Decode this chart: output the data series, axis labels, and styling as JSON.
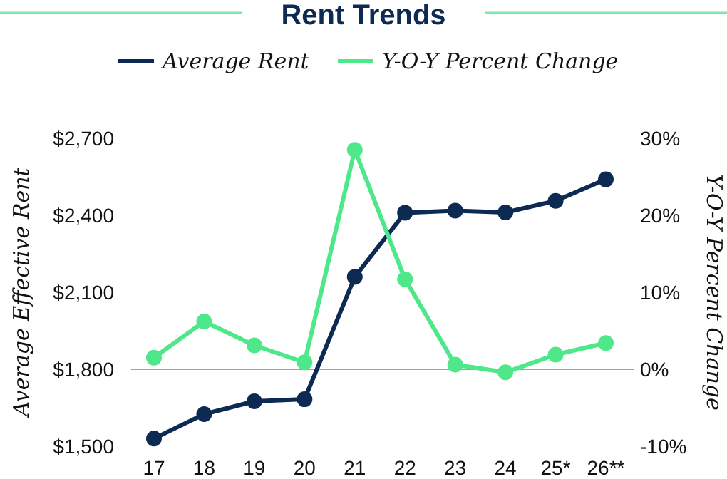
{
  "chart_data": {
    "type": "line",
    "title": "Rent Trends",
    "ylabel": "Average Effective Rent",
    "y2label": "Y-O-Y Percent Change",
    "categories": [
      "17",
      "18",
      "19",
      "20",
      "21",
      "22",
      "23",
      "24",
      "25*",
      "26**"
    ],
    "series": [
      {
        "name": "Average Rent",
        "color": "#0d2a52",
        "values": [
          1530,
          1625,
          1675,
          1683,
          2160,
          2410,
          2418,
          2411,
          2456,
          2540
        ]
      },
      {
        "name": "Y-O-Y Percent Change",
        "color": "#4ee88b",
        "axis": "y2",
        "values": [
          1.5,
          6.2,
          3.1,
          0.9,
          28.5,
          11.7,
          0.6,
          -0.4,
          1.9,
          3.4
        ]
      }
    ],
    "ylim": [
      1500,
      2700
    ],
    "yticks": [
      {
        "value": 1500,
        "label": "$1,500"
      },
      {
        "value": 1800,
        "label": "$1,800"
      },
      {
        "value": 2100,
        "label": "$2,100"
      },
      {
        "value": 2400,
        "label": "$2,400"
      },
      {
        "value": 2700,
        "label": "$2,700"
      }
    ],
    "y2lim": [
      -10,
      30
    ],
    "y2ticks": [
      {
        "value": -10,
        "label": "-10%"
      },
      {
        "value": 0,
        "label": "0%"
      },
      {
        "value": 10,
        "label": "10%"
      },
      {
        "value": 20,
        "label": "20%"
      },
      {
        "value": 30,
        "label": "30%"
      }
    ],
    "ref_lines": [
      {
        "axis": "y2",
        "value": 0,
        "color": "#a0a0a0"
      }
    ],
    "grid": false,
    "legend": "top",
    "marker": "circle",
    "line_style": "solid"
  }
}
